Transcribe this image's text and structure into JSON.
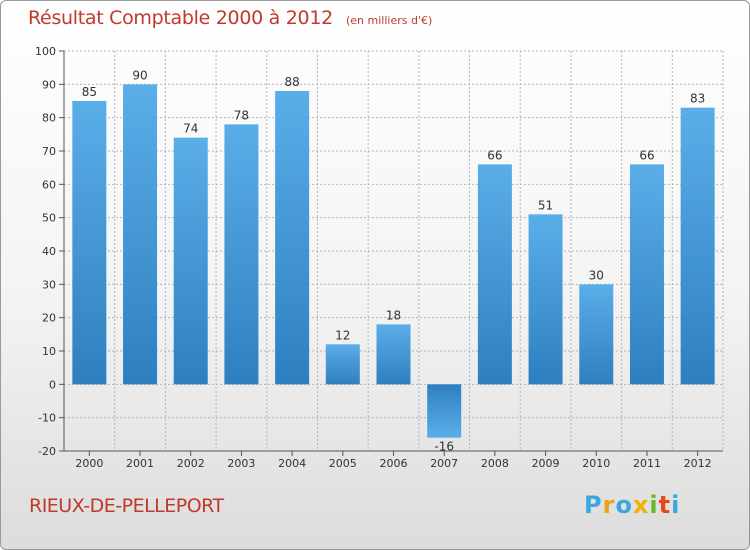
{
  "header": {
    "title": "Résultat Comptable 2000 à 2012",
    "subtitle": "(en milliers d'€)"
  },
  "footer": {
    "commune": "RIEUX-DE-PELLEPORT",
    "logo_letters": [
      {
        "ch": "P",
        "color": "#3aa7e0"
      },
      {
        "ch": "r",
        "color": "#e8a317"
      },
      {
        "ch": "o",
        "color": "#3aa7e0"
      },
      {
        "ch": "x",
        "color": "#f0b400"
      },
      {
        "ch": "i",
        "color": "#6ab82e"
      },
      {
        "ch": "t",
        "color": "#e8471c"
      },
      {
        "ch": "i",
        "color": "#3aa7e0"
      }
    ]
  },
  "colors": {
    "bar_top": "#5aaee8",
    "bar_bottom": "#2e7fc0",
    "accent": "#c0392b"
  },
  "chart_data": {
    "type": "bar",
    "title": "Résultat Comptable 2000 à 2012",
    "subtitle": "(en milliers d'€)",
    "categories": [
      "2000",
      "2001",
      "2002",
      "2003",
      "2004",
      "2005",
      "2006",
      "2007",
      "2008",
      "2009",
      "2010",
      "2011",
      "2012"
    ],
    "values": [
      85,
      90,
      74,
      78,
      88,
      12,
      18,
      -16,
      66,
      51,
      30,
      66,
      83
    ],
    "value_labels": [
      "85",
      "90",
      "74",
      "78",
      "88",
      "12",
      "18",
      "-16",
      "66",
      "51",
      "30",
      "66",
      "83"
    ],
    "ylim": [
      -20,
      100
    ],
    "yticks": [
      -20,
      -10,
      0,
      10,
      20,
      30,
      40,
      50,
      60,
      70,
      80,
      90,
      100
    ],
    "ytick_labels": [
      "-20",
      "-10",
      "0",
      "10",
      "20",
      "30",
      "40",
      "50",
      "60",
      "70",
      "80",
      "90",
      "100"
    ],
    "grid": true,
    "xlabel": "",
    "ylabel": ""
  }
}
